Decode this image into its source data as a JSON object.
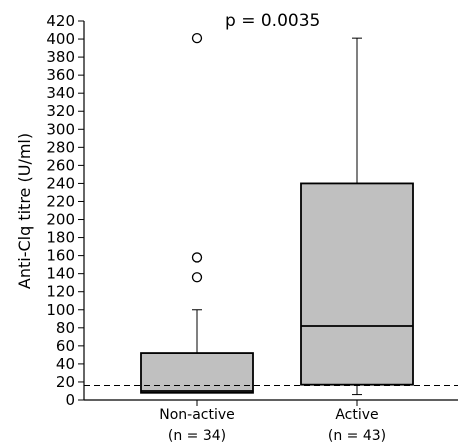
{
  "chart_data": {
    "type": "box",
    "title": "",
    "annotation": "p = 0.0035",
    "ylabel": "Anti-Clq titre (U/ml)",
    "xlabel": "",
    "ylim": [
      0,
      420
    ],
    "ytick_step": 20,
    "yticks": [
      "0",
      "20",
      "40",
      "60",
      "80",
      "100",
      "120",
      "140",
      "160",
      "180",
      "200",
      "220",
      "240",
      "260",
      "280",
      "300",
      "320",
      "340",
      "360",
      "380",
      "400",
      "420"
    ],
    "reference_line": 16,
    "box_color": "#c0c0c0",
    "groups": [
      {
        "label": "Non-active",
        "n_label": "(n = 34)",
        "whisker_low": 8,
        "q1": 8,
        "median": 10,
        "q3": 52,
        "whisker_high": 100,
        "outliers": [
          136,
          158,
          401
        ]
      },
      {
        "label": "Active",
        "n_label": "(n = 43)",
        "whisker_low": 6,
        "q1": 17,
        "median": 82,
        "q3": 240,
        "whisker_high": 401,
        "outliers": []
      }
    ]
  }
}
